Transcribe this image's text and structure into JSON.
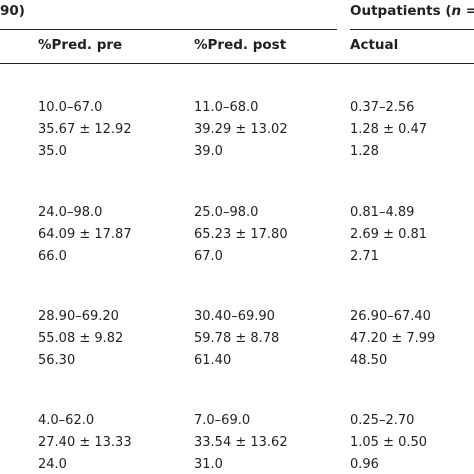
{
  "header": {
    "left_group": "90)",
    "right_group_prefix": "Outpatients (",
    "right_group_italic": "n ="
  },
  "columns": [
    "%Pred. pre",
    "%Pred. post",
    "Actual"
  ],
  "groups": [
    {
      "rows": [
        [
          "10.0–67.0",
          "11.0–68.0",
          "0.37–2.56"
        ],
        [
          "35.67 ± 12.92",
          "39.29 ± 13.02",
          "1.28 ± 0.47"
        ],
        [
          "35.0",
          "39.0",
          "1.28"
        ]
      ]
    },
    {
      "rows": [
        [
          "24.0–98.0",
          "25.0–98.0",
          "0.81–4.89"
        ],
        [
          "64.09 ± 17.87",
          "65.23 ± 17.80",
          "2.69 ± 0.81"
        ],
        [
          "66.0",
          "67.0",
          "2.71"
        ]
      ]
    },
    {
      "rows": [
        [
          "28.90–69.20",
          "30.40–69.90",
          "26.90–67.40"
        ],
        [
          "55.08 ± 9.82",
          "59.78 ± 8.78",
          "47.20 ± 7.99"
        ],
        [
          "56.30",
          "61.40",
          "48.50"
        ]
      ]
    },
    {
      "rows": [
        [
          "4.0–62.0",
          "7.0–69.0",
          "0.25–2.70"
        ],
        [
          "27.40 ± 13.33",
          "33.54 ± 13.62",
          "1.05 ± 0.50"
        ],
        [
          "24.0",
          "31.0",
          "0.96"
        ]
      ]
    }
  ]
}
